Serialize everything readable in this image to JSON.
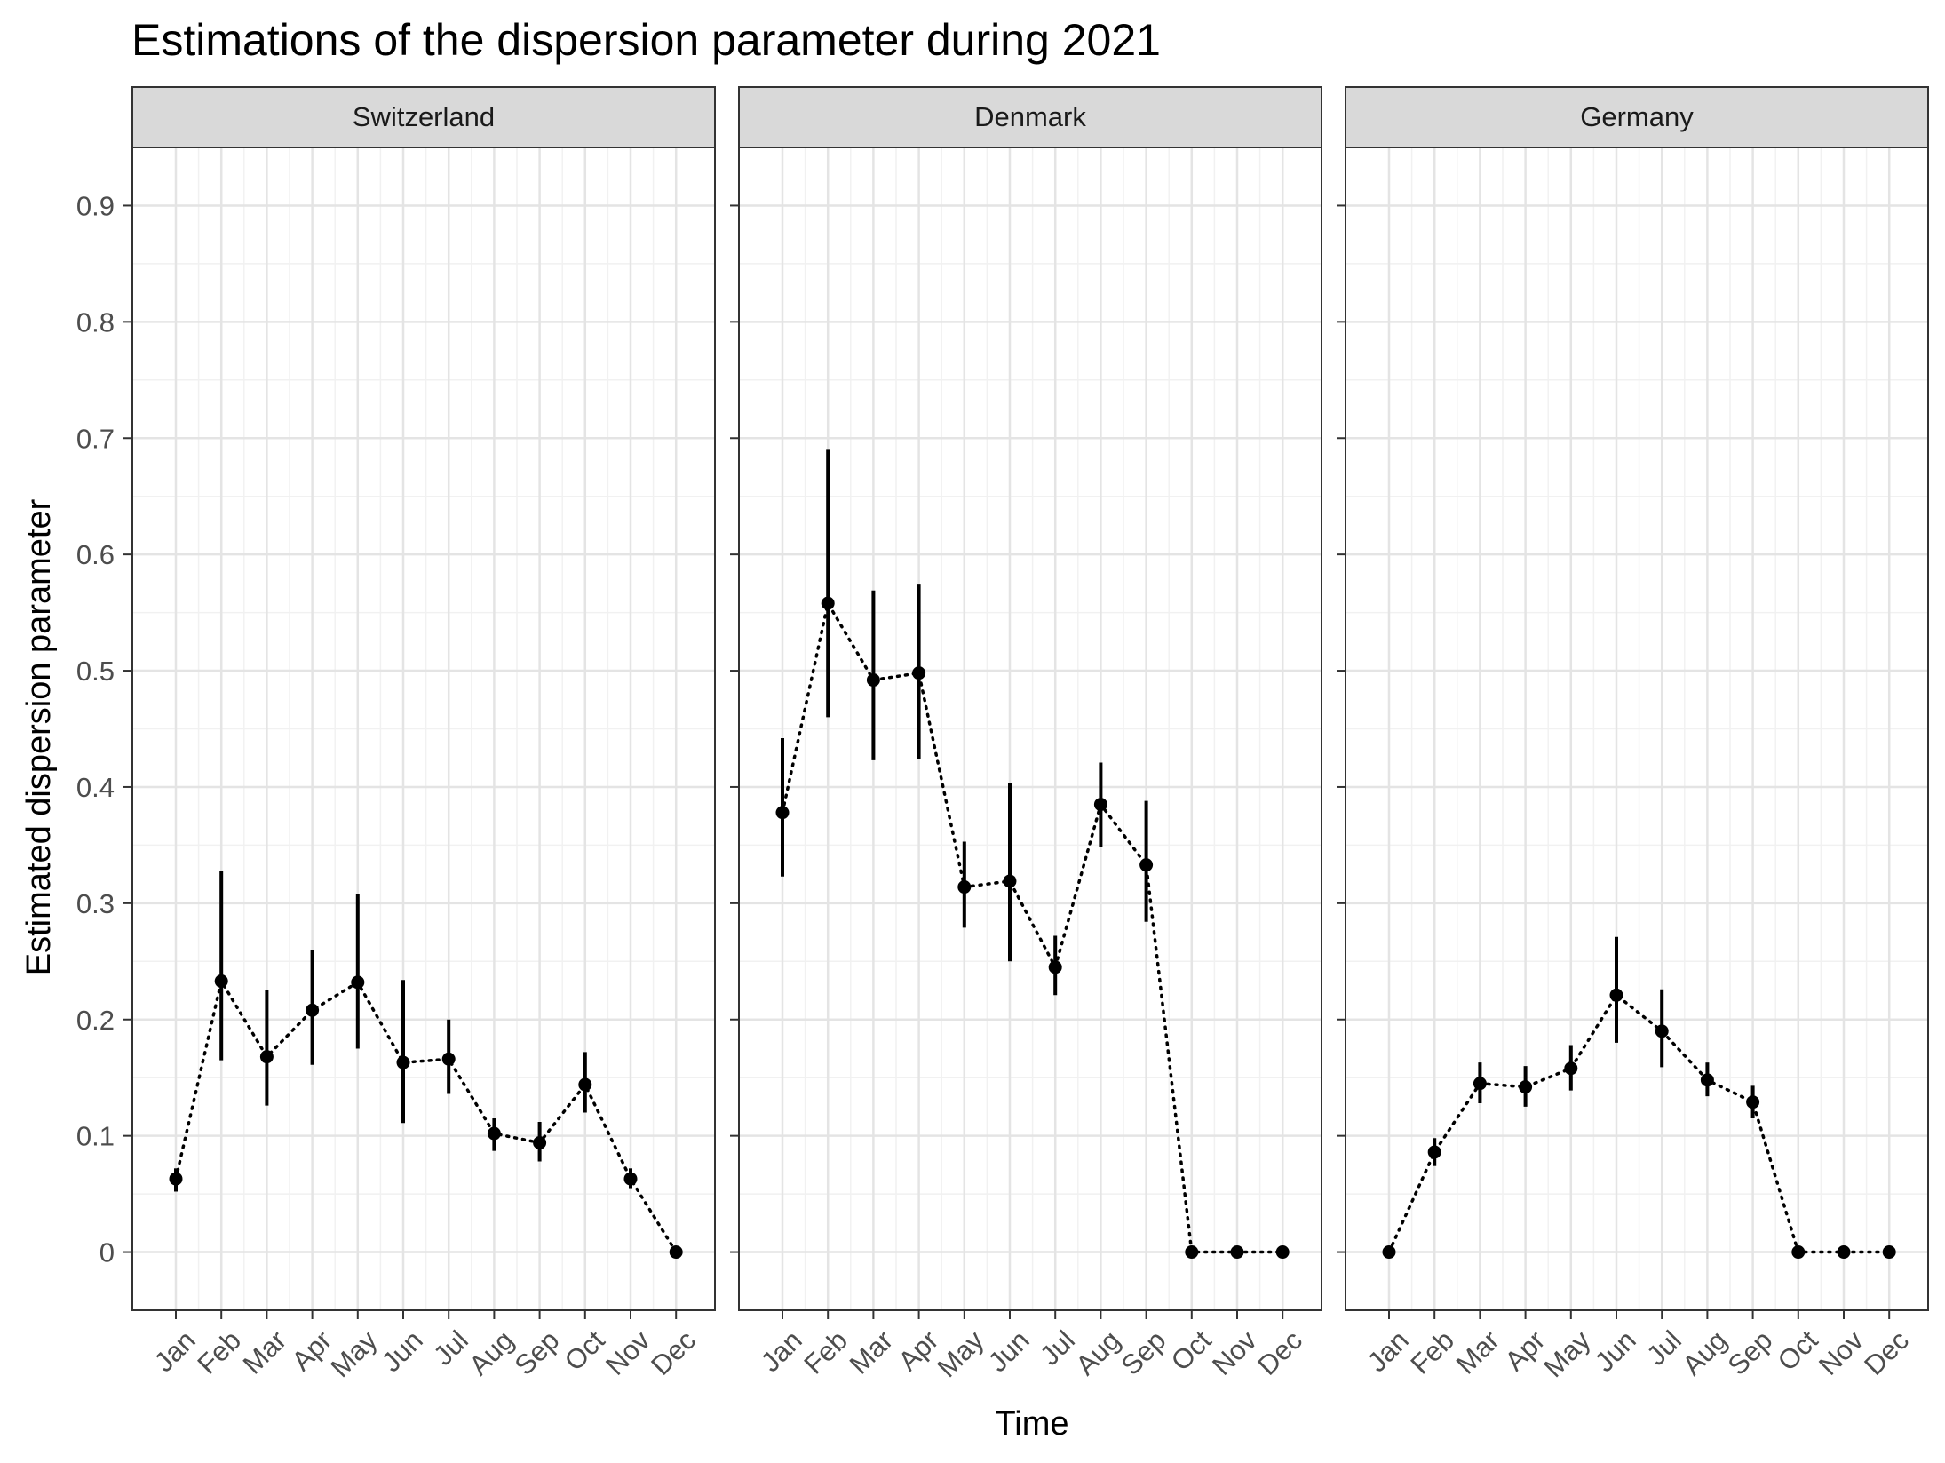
{
  "chart_data": {
    "type": "scatter",
    "title": "Estimations of the dispersion parameter during 2021",
    "xlabel": "Time",
    "ylabel": "Estimated dispersion parameter",
    "ylim": [
      -0.05,
      0.95
    ],
    "y_ticks": [
      0,
      0.1,
      0.2,
      0.3,
      0.4,
      0.5,
      0.6,
      0.7,
      0.8,
      0.9
    ],
    "y_tick_labels": [
      "0",
      "0.1",
      "0.2",
      "0.3",
      "0.4",
      "0.5",
      "0.6",
      "0.7",
      "0.8",
      "0.9"
    ],
    "categories": [
      "Jan",
      "Feb",
      "Mar",
      "Apr",
      "May",
      "Jun",
      "Jul",
      "Aug",
      "Sep",
      "Oct",
      "Nov",
      "Dec"
    ],
    "grid": true,
    "legend": "none",
    "point_color": "#000000",
    "facets": [
      {
        "label": "Switzerland",
        "values": [
          0.063,
          0.233,
          0.168,
          0.208,
          0.232,
          0.163,
          0.166,
          0.102,
          0.094,
          0.144,
          0.063,
          0.0
        ],
        "lower": [
          0.052,
          0.165,
          0.126,
          0.161,
          0.175,
          0.111,
          0.136,
          0.087,
          0.078,
          0.12,
          0.055,
          0.0
        ],
        "upper": [
          0.072,
          0.328,
          0.225,
          0.26,
          0.308,
          0.234,
          0.2,
          0.115,
          0.112,
          0.172,
          0.072,
          0.0
        ]
      },
      {
        "label": "Denmark",
        "values": [
          0.378,
          0.558,
          0.492,
          0.498,
          0.314,
          0.319,
          0.245,
          0.385,
          0.333,
          0.0,
          0.0,
          0.0
        ],
        "lower": [
          0.323,
          0.46,
          0.423,
          0.424,
          0.279,
          0.25,
          0.221,
          0.348,
          0.284,
          0.0,
          0.0,
          0.0
        ],
        "upper": [
          0.442,
          0.69,
          0.569,
          0.574,
          0.353,
          0.403,
          0.272,
          0.421,
          0.388,
          0.0,
          0.0,
          0.0
        ]
      },
      {
        "label": "Germany",
        "values": [
          0.0,
          0.086,
          0.145,
          0.142,
          0.158,
          0.221,
          0.19,
          0.148,
          0.129,
          0.0,
          0.0,
          0.0
        ],
        "lower": [
          0.0,
          0.074,
          0.128,
          0.125,
          0.139,
          0.18,
          0.159,
          0.134,
          0.115,
          0.0,
          0.0,
          0.0
        ],
        "upper": [
          0.0,
          0.098,
          0.163,
          0.16,
          0.178,
          0.271,
          0.226,
          0.163,
          0.143,
          0.0,
          0.0,
          0.0
        ]
      }
    ]
  }
}
